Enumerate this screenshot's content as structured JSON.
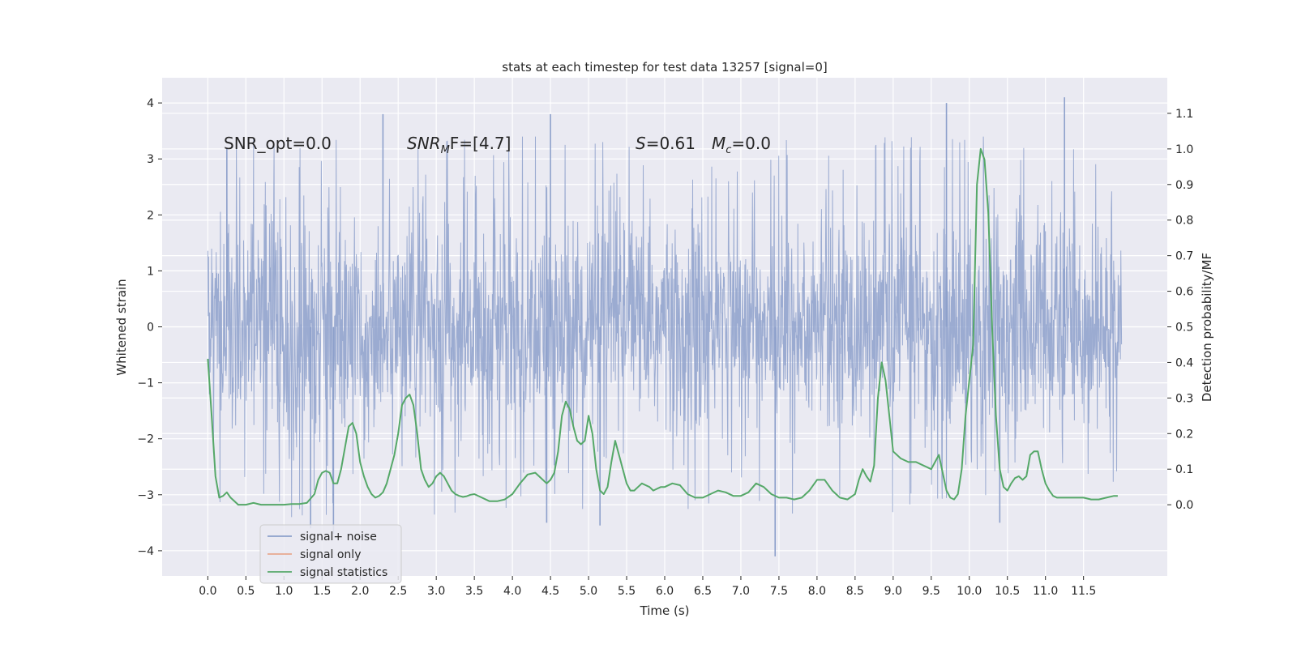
{
  "chart_data": {
    "type": "line",
    "title": "stats at each timestep for test data 13257 [signal=0]",
    "xlabel": "Time (s)",
    "ylabel_left": "Whitened strain",
    "ylabel_right": "Detection probability/MF",
    "xlim": [
      -0.6,
      12.6
    ],
    "ylim_left": [
      -4.45,
      4.45
    ],
    "ylim_right": [
      -0.2,
      1.2
    ],
    "x_ticks": [
      0.0,
      0.5,
      1.0,
      1.5,
      2.0,
      2.5,
      3.0,
      3.5,
      4.0,
      4.5,
      5.0,
      5.5,
      6.0,
      6.5,
      7.0,
      7.5,
      8.0,
      8.5,
      9.0,
      9.5,
      10.0,
      10.5,
      11.0,
      11.5
    ],
    "x_tick_labels": [
      "0.0",
      "0.5",
      "1.0",
      "1.5",
      "2.0",
      "2.5",
      "3.0",
      "3.5",
      "4.0",
      "4.5",
      "5.0",
      "5.5",
      "6.0",
      "6.5",
      "7.0",
      "7.5",
      "8.0",
      "8.5",
      "9.0",
      "9.5",
      "10.0",
      "10.5",
      "11.0",
      "11.5"
    ],
    "y_left_ticks": [
      4,
      3,
      2,
      1,
      0,
      -1,
      -2,
      -3,
      -4
    ],
    "y_left_tick_labels": [
      "4",
      "3",
      "2",
      "1",
      "0",
      "−1",
      "−2",
      "−3",
      "−4"
    ],
    "y_right_ticks": [
      1.1,
      1.0,
      0.9,
      0.8,
      0.7,
      0.6,
      0.5,
      0.4,
      0.3,
      0.2,
      0.1,
      0.0
    ],
    "y_right_tick_labels": [
      "1.1",
      "1.0",
      "0.9",
      "0.8",
      "0.7",
      "0.6",
      "0.5",
      "0.4",
      "0.3",
      "0.2",
      "0.1",
      "0.0"
    ],
    "grid": true,
    "legend_placement": "lower-left",
    "annotations": {
      "snr_opt": "SNR_opt=0.0",
      "snr_mf": "SNR",
      "snr_mf_sub": "M",
      "snr_mf_rest": "F=[4.7]",
      "s_italic": "S",
      "s_val": "=0.61",
      "mc_italic": "M",
      "mc_sub": "c",
      "mc_val": "=0.0"
    },
    "series": [
      {
        "name": "signal+ noise",
        "color": "#8da0cb",
        "axis": "left",
        "t_range": [
          0.0,
          12.0
        ],
        "envelope_typical": [
          -1.9,
          1.9
        ],
        "spike_extremes": [
          {
            "x": 0.25,
            "y": 3.2
          },
          {
            "x": 1.35,
            "y": -3.6
          },
          {
            "x": 1.65,
            "y": -3.7
          },
          {
            "x": 2.3,
            "y": 3.8
          },
          {
            "x": 4.5,
            "y": 3.8
          },
          {
            "x": 4.45,
            "y": -3.5
          },
          {
            "x": 5.15,
            "y": -3.55
          },
          {
            "x": 7.45,
            "y": -4.1
          },
          {
            "x": 9.7,
            "y": 4.0
          },
          {
            "x": 11.25,
            "y": 4.1
          },
          {
            "x": 10.4,
            "y": -3.5
          }
        ]
      },
      {
        "name": "signal only",
        "color": "#e8a98f",
        "axis": "left",
        "x": [],
        "y": []
      },
      {
        "name": "signal statistics",
        "color": "#55a868",
        "axis": "right",
        "x": [
          0.0,
          0.05,
          0.1,
          0.15,
          0.2,
          0.25,
          0.3,
          0.4,
          0.5,
          0.6,
          0.7,
          0.8,
          0.9,
          1.0,
          1.1,
          1.2,
          1.3,
          1.4,
          1.45,
          1.5,
          1.55,
          1.6,
          1.65,
          1.7,
          1.75,
          1.8,
          1.85,
          1.9,
          1.95,
          2.0,
          2.05,
          2.1,
          2.15,
          2.2,
          2.25,
          2.3,
          2.35,
          2.4,
          2.45,
          2.5,
          2.55,
          2.6,
          2.65,
          2.7,
          2.75,
          2.8,
          2.85,
          2.9,
          2.95,
          3.0,
          3.05,
          3.1,
          3.15,
          3.2,
          3.25,
          3.3,
          3.35,
          3.4,
          3.45,
          3.5,
          3.6,
          3.7,
          3.8,
          3.9,
          4.0,
          4.1,
          4.2,
          4.3,
          4.35,
          4.4,
          4.45,
          4.5,
          4.55,
          4.6,
          4.65,
          4.7,
          4.75,
          4.8,
          4.85,
          4.9,
          4.95,
          5.0,
          5.05,
          5.1,
          5.15,
          5.2,
          5.25,
          5.3,
          5.35,
          5.4,
          5.45,
          5.5,
          5.55,
          5.6,
          5.65,
          5.7,
          5.75,
          5.8,
          5.85,
          5.9,
          5.95,
          6.0,
          6.1,
          6.2,
          6.3,
          6.4,
          6.5,
          6.6,
          6.7,
          6.8,
          6.9,
          7.0,
          7.1,
          7.2,
          7.3,
          7.4,
          7.5,
          7.6,
          7.7,
          7.8,
          7.9,
          8.0,
          8.1,
          8.2,
          8.3,
          8.4,
          8.5,
          8.55,
          8.6,
          8.65,
          8.7,
          8.75,
          8.8,
          8.85,
          8.9,
          8.95,
          9.0,
          9.1,
          9.2,
          9.3,
          9.4,
          9.5,
          9.55,
          9.6,
          9.65,
          9.7,
          9.75,
          9.8,
          9.85,
          9.9,
          9.95,
          10.0,
          10.05,
          10.1,
          10.15,
          10.2,
          10.25,
          10.3,
          10.35,
          10.4,
          10.45,
          10.5,
          10.55,
          10.6,
          10.65,
          10.7,
          10.75,
          10.8,
          10.85,
          10.9,
          10.95,
          11.0,
          11.05,
          11.1,
          11.15,
          11.2,
          11.3,
          11.4,
          11.5,
          11.6,
          11.7,
          11.8,
          11.9,
          11.95
        ],
        "y": [
          0.41,
          0.25,
          0.08,
          0.02,
          0.025,
          0.035,
          0.02,
          0.0,
          0.0,
          0.005,
          0.0,
          0.0,
          0.0,
          0.0,
          0.002,
          0.002,
          0.005,
          0.03,
          0.07,
          0.09,
          0.095,
          0.09,
          0.06,
          0.06,
          0.1,
          0.16,
          0.22,
          0.23,
          0.2,
          0.12,
          0.08,
          0.05,
          0.03,
          0.02,
          0.025,
          0.035,
          0.06,
          0.1,
          0.14,
          0.2,
          0.28,
          0.3,
          0.31,
          0.28,
          0.2,
          0.1,
          0.07,
          0.05,
          0.06,
          0.08,
          0.09,
          0.08,
          0.06,
          0.04,
          0.03,
          0.025,
          0.022,
          0.024,
          0.028,
          0.03,
          0.02,
          0.01,
          0.01,
          0.015,
          0.03,
          0.06,
          0.085,
          0.09,
          0.08,
          0.07,
          0.06,
          0.07,
          0.09,
          0.15,
          0.25,
          0.29,
          0.27,
          0.22,
          0.18,
          0.17,
          0.18,
          0.25,
          0.2,
          0.1,
          0.04,
          0.03,
          0.05,
          0.12,
          0.18,
          0.14,
          0.1,
          0.06,
          0.04,
          0.04,
          0.05,
          0.06,
          0.055,
          0.05,
          0.04,
          0.045,
          0.05,
          0.05,
          0.06,
          0.055,
          0.03,
          0.02,
          0.02,
          0.03,
          0.04,
          0.035,
          0.025,
          0.025,
          0.035,
          0.06,
          0.05,
          0.03,
          0.02,
          0.02,
          0.015,
          0.02,
          0.04,
          0.07,
          0.07,
          0.04,
          0.02,
          0.015,
          0.03,
          0.07,
          0.1,
          0.08,
          0.065,
          0.11,
          0.3,
          0.4,
          0.35,
          0.25,
          0.15,
          0.13,
          0.12,
          0.12,
          0.11,
          0.1,
          0.12,
          0.14,
          0.09,
          0.04,
          0.02,
          0.015,
          0.03,
          0.1,
          0.25,
          0.35,
          0.45,
          0.9,
          1.0,
          0.97,
          0.82,
          0.5,
          0.25,
          0.1,
          0.05,
          0.04,
          0.06,
          0.075,
          0.08,
          0.07,
          0.08,
          0.14,
          0.15,
          0.15,
          0.1,
          0.06,
          0.04,
          0.025,
          0.02,
          0.02,
          0.02,
          0.02,
          0.02,
          0.015,
          0.015,
          0.02,
          0.025,
          0.025
        ]
      }
    ]
  }
}
